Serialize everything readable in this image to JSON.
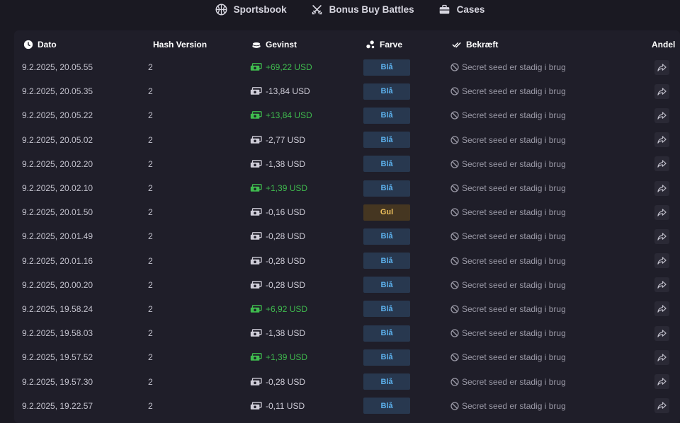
{
  "nav": [
    {
      "label": "Sportsbook",
      "icon": "basketball-icon"
    },
    {
      "label": "Bonus Buy Battles",
      "icon": "crossed-swords-icon"
    },
    {
      "label": "Cases",
      "icon": "briefcase-icon"
    }
  ],
  "headers": {
    "date": "Dato",
    "hash": "Hash Version",
    "win": "Gevinst",
    "color": "Farve",
    "verify": "Bekræft",
    "share": "Andel"
  },
  "colors": {
    "background": "#1a1922",
    "panel": "#1f1e29",
    "win_positive": "#3fbb4e",
    "badge_blue_bg": "#28384f",
    "badge_blue_text": "#5db2ee",
    "badge_yellow_bg": "#453621",
    "badge_yellow_text": "#f0c25d"
  },
  "rows": [
    {
      "date": "9.2.2025, 20.05.55",
      "hash": "2",
      "win": "+69,22 USD",
      "positive": true,
      "color": "Blå",
      "color_type": "blue",
      "verify": "Secret seed er stadig i brug"
    },
    {
      "date": "9.2.2025, 20.05.35",
      "hash": "2",
      "win": "-13,84 USD",
      "positive": false,
      "color": "Blå",
      "color_type": "blue",
      "verify": "Secret seed er stadig i brug"
    },
    {
      "date": "9.2.2025, 20.05.22",
      "hash": "2",
      "win": "+13,84 USD",
      "positive": true,
      "color": "Blå",
      "color_type": "blue",
      "verify": "Secret seed er stadig i brug"
    },
    {
      "date": "9.2.2025, 20.05.02",
      "hash": "2",
      "win": "-2,77 USD",
      "positive": false,
      "color": "Blå",
      "color_type": "blue",
      "verify": "Secret seed er stadig i brug"
    },
    {
      "date": "9.2.2025, 20.02.20",
      "hash": "2",
      "win": "-1,38 USD",
      "positive": false,
      "color": "Blå",
      "color_type": "blue",
      "verify": "Secret seed er stadig i brug"
    },
    {
      "date": "9.2.2025, 20.02.10",
      "hash": "2",
      "win": "+1,39 USD",
      "positive": true,
      "color": "Blå",
      "color_type": "blue",
      "verify": "Secret seed er stadig i brug"
    },
    {
      "date": "9.2.2025, 20.01.50",
      "hash": "2",
      "win": "-0,16 USD",
      "positive": false,
      "color": "Gul",
      "color_type": "yellow",
      "verify": "Secret seed er stadig i brug"
    },
    {
      "date": "9.2.2025, 20.01.49",
      "hash": "2",
      "win": "-0,28 USD",
      "positive": false,
      "color": "Blå",
      "color_type": "blue",
      "verify": "Secret seed er stadig i brug"
    },
    {
      "date": "9.2.2025, 20.01.16",
      "hash": "2",
      "win": "-0,28 USD",
      "positive": false,
      "color": "Blå",
      "color_type": "blue",
      "verify": "Secret seed er stadig i brug"
    },
    {
      "date": "9.2.2025, 20.00.20",
      "hash": "2",
      "win": "-0,28 USD",
      "positive": false,
      "color": "Blå",
      "color_type": "blue",
      "verify": "Secret seed er stadig i brug"
    },
    {
      "date": "9.2.2025, 19.58.24",
      "hash": "2",
      "win": "+6,92 USD",
      "positive": true,
      "color": "Blå",
      "color_type": "blue",
      "verify": "Secret seed er stadig i brug"
    },
    {
      "date": "9.2.2025, 19.58.03",
      "hash": "2",
      "win": "-1,38 USD",
      "positive": false,
      "color": "Blå",
      "color_type": "blue",
      "verify": "Secret seed er stadig i brug"
    },
    {
      "date": "9.2.2025, 19.57.52",
      "hash": "2",
      "win": "+1,39 USD",
      "positive": true,
      "color": "Blå",
      "color_type": "blue",
      "verify": "Secret seed er stadig i brug"
    },
    {
      "date": "9.2.2025, 19.57.30",
      "hash": "2",
      "win": "-0,28 USD",
      "positive": false,
      "color": "Blå",
      "color_type": "blue",
      "verify": "Secret seed er stadig i brug"
    },
    {
      "date": "9.2.2025, 19.22.57",
      "hash": "2",
      "win": "-0,11 USD",
      "positive": false,
      "color": "Blå",
      "color_type": "blue",
      "verify": "Secret seed er stadig i brug"
    }
  ]
}
